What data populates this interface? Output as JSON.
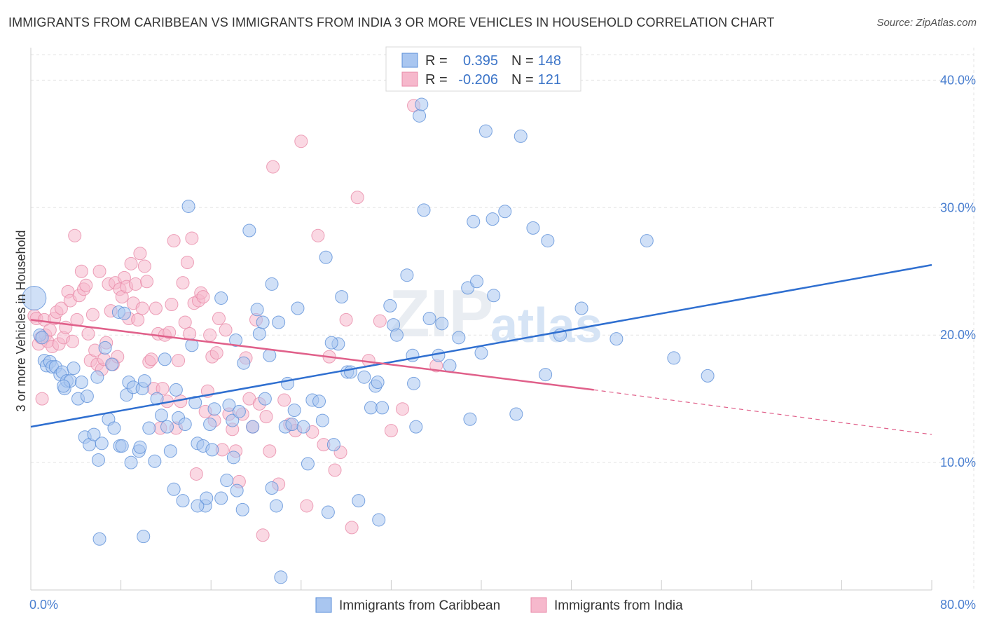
{
  "title": "IMMIGRANTS FROM CARIBBEAN VS IMMIGRANTS FROM INDIA 3 OR MORE VEHICLES IN HOUSEHOLD CORRELATION CHART",
  "source": "Source: ZipAtlas.com",
  "watermark": {
    "part1": "ZIP",
    "part2": "atlas"
  },
  "colors": {
    "caribbean_fill": "#a9c6f0",
    "caribbean_stroke": "#5b8fd8",
    "caribbean_line": "#2f6fd0",
    "india_fill": "#f6b8cc",
    "india_stroke": "#e88aa8",
    "india_line": "#e0608a",
    "grid": "#e3e3e3",
    "axis_text": "#4a7fd0"
  },
  "legend": {
    "rows": [
      {
        "r_label": "R =",
        "r_value": "0.395",
        "n_label": "N =",
        "n_value": "148"
      },
      {
        "r_label": "R =",
        "r_value": "-0.206",
        "n_label": "N =",
        "n_value": "121"
      }
    ]
  },
  "chart_data": {
    "type": "scatter",
    "xlabel": "",
    "ylabel": "3 or more Vehicles in Household",
    "xlim": [
      0,
      80
    ],
    "ylim": [
      0,
      42
    ],
    "x_tick_labels": [
      "0.0%",
      "80.0%"
    ],
    "y_ticks": [
      10,
      20,
      30,
      40
    ],
    "y_tick_labels": [
      "10.0%",
      "20.0%",
      "30.0%",
      "40.0%"
    ],
    "grid": true,
    "series": [
      {
        "name": "Immigrants from Caribbean",
        "r": 0.395,
        "n": 148,
        "trend": {
          "x": [
            0,
            80
          ],
          "y": [
            12.8,
            25.5
          ]
        },
        "points": [
          [
            0.3,
            22.9
          ],
          [
            0.8,
            20.0
          ],
          [
            1.0,
            19.8
          ],
          [
            1.2,
            18.0
          ],
          [
            1.4,
            17.6
          ],
          [
            1.7,
            17.9
          ],
          [
            1.9,
            17.5
          ],
          [
            2.2,
            17.5
          ],
          [
            2.6,
            16.9
          ],
          [
            2.8,
            17.1
          ],
          [
            3.0,
            15.8
          ],
          [
            3.2,
            16.4
          ],
          [
            3.5,
            16.4
          ],
          [
            3.8,
            17.4
          ],
          [
            4.2,
            15.0
          ],
          [
            4.5,
            16.3
          ],
          [
            4.8,
            12.0
          ],
          [
            5.0,
            15.2
          ],
          [
            5.2,
            11.4
          ],
          [
            5.6,
            12.2
          ],
          [
            5.9,
            16.7
          ],
          [
            6.0,
            10.2
          ],
          [
            6.3,
            11.5
          ],
          [
            6.6,
            19.0
          ],
          [
            6.9,
            13.4
          ],
          [
            7.2,
            17.7
          ],
          [
            7.4,
            12.7
          ],
          [
            7.8,
            21.8
          ],
          [
            7.9,
            11.3
          ],
          [
            8.1,
            11.3
          ],
          [
            8.5,
            15.3
          ],
          [
            8.7,
            16.3
          ],
          [
            8.9,
            10.0
          ],
          [
            9.1,
            15.9
          ],
          [
            9.6,
            10.9
          ],
          [
            9.9,
            15.8
          ],
          [
            10.1,
            16.4
          ],
          [
            10.5,
            12.7
          ],
          [
            11.0,
            10.1
          ],
          [
            11.2,
            15.0
          ],
          [
            11.6,
            13.7
          ],
          [
            11.9,
            18.1
          ],
          [
            12.1,
            12.8
          ],
          [
            12.4,
            10.9
          ],
          [
            12.7,
            7.9
          ],
          [
            12.9,
            15.7
          ],
          [
            13.1,
            13.5
          ],
          [
            13.5,
            7.0
          ],
          [
            13.7,
            13.0
          ],
          [
            14.0,
            30.1
          ],
          [
            14.3,
            19.2
          ],
          [
            14.6,
            14.7
          ],
          [
            14.8,
            11.5
          ],
          [
            15.3,
            11.3
          ],
          [
            15.5,
            6.6
          ],
          [
            15.9,
            13.0
          ],
          [
            16.1,
            11.0
          ],
          [
            16.3,
            14.2
          ],
          [
            16.9,
            7.2
          ],
          [
            16.9,
            22.9
          ],
          [
            17.4,
            8.6
          ],
          [
            17.6,
            14.5
          ],
          [
            17.9,
            13.3
          ],
          [
            18.0,
            10.4
          ],
          [
            18.2,
            19.6
          ],
          [
            18.5,
            14.0
          ],
          [
            18.8,
            6.3
          ],
          [
            18.9,
            17.8
          ],
          [
            19.4,
            28.2
          ],
          [
            20.1,
            22.0
          ],
          [
            20.3,
            20.1
          ],
          [
            20.6,
            21.0
          ],
          [
            20.8,
            15.0
          ],
          [
            21.2,
            18.4
          ],
          [
            21.4,
            24.0
          ],
          [
            21.8,
            6.6
          ],
          [
            22.0,
            21.0
          ],
          [
            22.6,
            12.8
          ],
          [
            22.8,
            16.2
          ],
          [
            23.2,
            13.0
          ],
          [
            23.4,
            14.1
          ],
          [
            23.7,
            22.1
          ],
          [
            24.2,
            12.8
          ],
          [
            24.6,
            9.9
          ],
          [
            25.0,
            14.9
          ],
          [
            25.6,
            14.8
          ],
          [
            25.9,
            13.3
          ],
          [
            26.2,
            26.1
          ],
          [
            26.4,
            6.1
          ],
          [
            26.9,
            11.4
          ],
          [
            27.3,
            19.3
          ],
          [
            27.6,
            23.0
          ],
          [
            28.1,
            17.1
          ],
          [
            28.4,
            17.1
          ],
          [
            29.1,
            7.0
          ],
          [
            29.6,
            16.7
          ],
          [
            30.2,
            14.3
          ],
          [
            30.6,
            16.0
          ],
          [
            30.8,
            16.3
          ],
          [
            31.2,
            14.3
          ],
          [
            31.9,
            22.3
          ],
          [
            32.2,
            20.8
          ],
          [
            32.5,
            20.0
          ],
          [
            33.4,
            24.7
          ],
          [
            33.9,
            18.4
          ],
          [
            34.0,
            16.2
          ],
          [
            34.2,
            12.8
          ],
          [
            34.5,
            37.2
          ],
          [
            34.7,
            38.1
          ],
          [
            34.9,
            29.8
          ],
          [
            35.4,
            21.3
          ],
          [
            36.2,
            18.4
          ],
          [
            36.5,
            20.9
          ],
          [
            37.2,
            17.6
          ],
          [
            38.0,
            19.8
          ],
          [
            38.8,
            23.7
          ],
          [
            39.0,
            13.4
          ],
          [
            39.3,
            28.9
          ],
          [
            39.6,
            24.2
          ],
          [
            40.0,
            18.6
          ],
          [
            40.4,
            36.0
          ],
          [
            41.0,
            29.1
          ],
          [
            41.1,
            23.1
          ],
          [
            42.1,
            29.7
          ],
          [
            43.1,
            13.8
          ],
          [
            43.5,
            35.6
          ],
          [
            44.6,
            28.4
          ],
          [
            45.7,
            16.9
          ],
          [
            45.9,
            27.4
          ],
          [
            47.0,
            20.0
          ],
          [
            48.9,
            22.1
          ],
          [
            52.0,
            19.7
          ],
          [
            54.7,
            27.4
          ],
          [
            57.1,
            18.2
          ],
          [
            60.1,
            16.8
          ],
          [
            8.3,
            21.7
          ],
          [
            9.7,
            11.2
          ],
          [
            2.9,
            16.0
          ],
          [
            19.7,
            12.8
          ],
          [
            26.7,
            19.4
          ],
          [
            10.0,
            4.2
          ],
          [
            6.1,
            4.0
          ],
          [
            14.8,
            6.6
          ],
          [
            15.6,
            7.2
          ],
          [
            18.3,
            7.8
          ],
          [
            21.4,
            8.0
          ],
          [
            30.9,
            5.5
          ],
          [
            22.2,
            1.0
          ]
        ]
      },
      {
        "name": "Immigrants from India",
        "r": -0.206,
        "n": 121,
        "trend": {
          "x": [
            0,
            50
          ],
          "y": [
            21.2,
            15.7
          ]
        },
        "trend_dashed": {
          "x": [
            50,
            80
          ],
          "y": [
            15.7,
            12.2
          ]
        },
        "points": [
          [
            0.3,
            21.5
          ],
          [
            0.5,
            21.3
          ],
          [
            0.7,
            19.3
          ],
          [
            0.9,
            19.8
          ],
          [
            1.0,
            15.0
          ],
          [
            1.2,
            21.2
          ],
          [
            1.3,
            20.0
          ],
          [
            1.5,
            19.5
          ],
          [
            1.7,
            20.4
          ],
          [
            1.9,
            19.1
          ],
          [
            2.1,
            21.3
          ],
          [
            2.3,
            21.8
          ],
          [
            2.5,
            19.3
          ],
          [
            2.7,
            22.1
          ],
          [
            2.9,
            19.8
          ],
          [
            3.1,
            20.6
          ],
          [
            3.3,
            23.4
          ],
          [
            3.5,
            22.7
          ],
          [
            3.7,
            19.5
          ],
          [
            3.9,
            27.8
          ],
          [
            4.1,
            21.2
          ],
          [
            4.3,
            23.1
          ],
          [
            4.5,
            25.0
          ],
          [
            4.7,
            23.6
          ],
          [
            4.9,
            23.9
          ],
          [
            5.1,
            20.1
          ],
          [
            5.3,
            18.0
          ],
          [
            5.5,
            21.6
          ],
          [
            5.7,
            18.8
          ],
          [
            5.9,
            17.7
          ],
          [
            6.1,
            25.0
          ],
          [
            6.3,
            17.3
          ],
          [
            6.5,
            18.1
          ],
          [
            6.7,
            19.4
          ],
          [
            6.9,
            24.0
          ],
          [
            7.1,
            21.9
          ],
          [
            7.3,
            17.7
          ],
          [
            7.5,
            24.1
          ],
          [
            7.7,
            18.3
          ],
          [
            7.9,
            23.6
          ],
          [
            8.1,
            23.0
          ],
          [
            8.3,
            24.5
          ],
          [
            8.5,
            23.8
          ],
          [
            8.7,
            21.3
          ],
          [
            8.9,
            25.6
          ],
          [
            9.1,
            22.5
          ],
          [
            9.3,
            24.0
          ],
          [
            9.5,
            21.2
          ],
          [
            9.7,
            26.4
          ],
          [
            9.9,
            22.1
          ],
          [
            10.1,
            25.4
          ],
          [
            10.3,
            24.2
          ],
          [
            10.5,
            17.9
          ],
          [
            10.7,
            18.1
          ],
          [
            10.9,
            15.8
          ],
          [
            11.1,
            22.1
          ],
          [
            11.3,
            20.1
          ],
          [
            11.5,
            12.7
          ],
          [
            11.7,
            15.8
          ],
          [
            11.9,
            20.0
          ],
          [
            12.1,
            14.8
          ],
          [
            12.3,
            20.2
          ],
          [
            12.5,
            22.4
          ],
          [
            12.7,
            27.4
          ],
          [
            12.9,
            12.7
          ],
          [
            13.1,
            18.0
          ],
          [
            13.3,
            14.8
          ],
          [
            13.5,
            24.1
          ],
          [
            13.7,
            21.0
          ],
          [
            13.9,
            25.7
          ],
          [
            14.1,
            20.1
          ],
          [
            14.3,
            27.6
          ],
          [
            14.5,
            22.5
          ],
          [
            14.7,
            9.1
          ],
          [
            14.9,
            22.7
          ],
          [
            15.1,
            23.3
          ],
          [
            15.3,
            23.0
          ],
          [
            15.5,
            14.0
          ],
          [
            15.7,
            15.6
          ],
          [
            15.9,
            20.0
          ],
          [
            16.1,
            18.3
          ],
          [
            16.3,
            13.3
          ],
          [
            16.5,
            18.6
          ],
          [
            16.7,
            21.3
          ],
          [
            17.0,
            11.0
          ],
          [
            17.3,
            20.4
          ],
          [
            17.6,
            13.8
          ],
          [
            17.9,
            12.6
          ],
          [
            18.2,
            10.9
          ],
          [
            18.5,
            8.5
          ],
          [
            18.8,
            13.8
          ],
          [
            19.1,
            18.2
          ],
          [
            19.4,
            15.0
          ],
          [
            19.7,
            12.8
          ],
          [
            20.0,
            21.2
          ],
          [
            20.3,
            14.6
          ],
          [
            20.6,
            4.3
          ],
          [
            20.9,
            13.6
          ],
          [
            21.2,
            10.9
          ],
          [
            21.5,
            33.2
          ],
          [
            22.0,
            8.3
          ],
          [
            22.5,
            14.9
          ],
          [
            23.0,
            13.0
          ],
          [
            23.5,
            12.5
          ],
          [
            24.0,
            35.2
          ],
          [
            24.5,
            6.6
          ],
          [
            25.0,
            12.4
          ],
          [
            25.5,
            27.8
          ],
          [
            26.0,
            11.4
          ],
          [
            26.5,
            18.3
          ],
          [
            27.0,
            9.4
          ],
          [
            27.5,
            10.8
          ],
          [
            28.0,
            21.2
          ],
          [
            28.5,
            4.9
          ],
          [
            29.0,
            30.8
          ],
          [
            30.0,
            18.0
          ],
          [
            31.0,
            21.1
          ],
          [
            32.0,
            12.5
          ],
          [
            33.0,
            14.2
          ],
          [
            34.0,
            38.0
          ],
          [
            36.0,
            17.6
          ]
        ]
      }
    ]
  },
  "bottom_legend": {
    "items": [
      {
        "label": "Immigrants from Caribbean"
      },
      {
        "label": "Immigrants from India"
      }
    ]
  }
}
